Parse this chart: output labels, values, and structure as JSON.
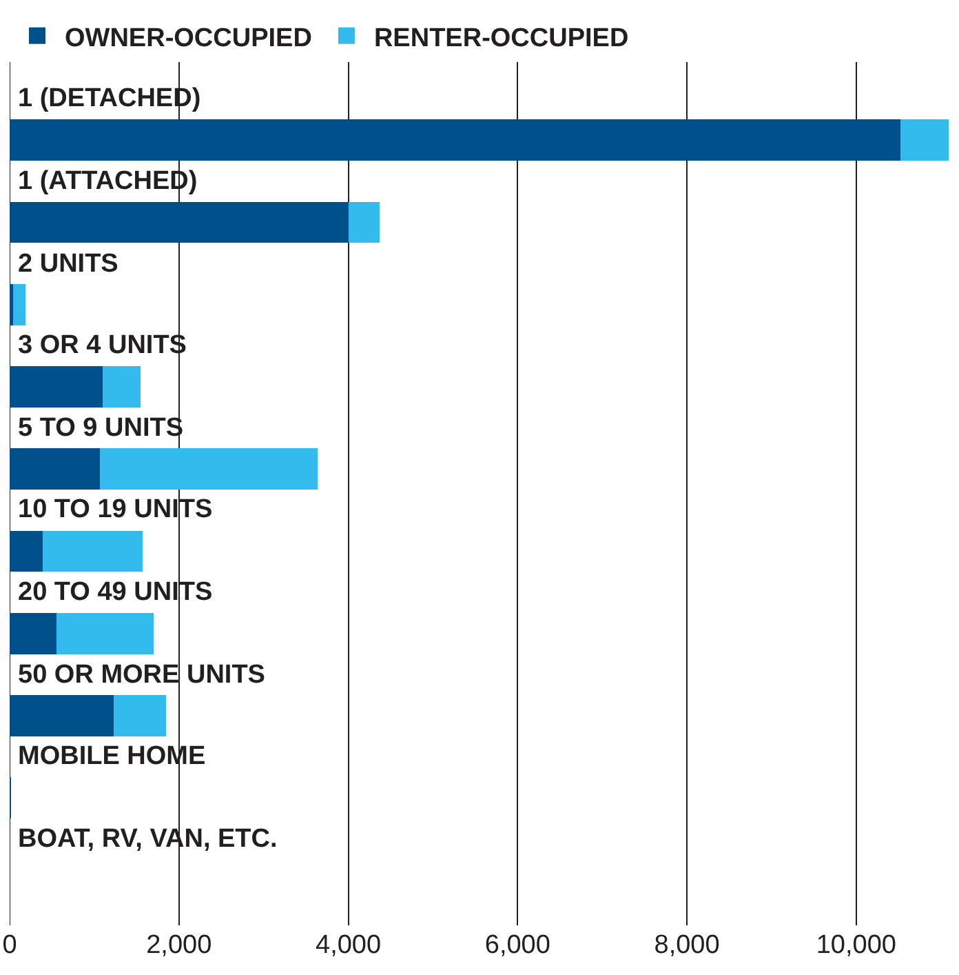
{
  "chart_data": {
    "type": "bar",
    "orientation": "horizontal",
    "stacked": true,
    "categories": [
      "1 (DETACHED)",
      "1 (ATTACHED)",
      "2 UNITS",
      "3 OR 4 UNITS",
      "5 TO 9 UNITS",
      "10 TO 19 UNITS",
      "20 TO 49 UNITS",
      "50 OR MORE UNITS",
      "MOBILE HOME",
      "BOAT, RV, VAN, ETC."
    ],
    "series": [
      {
        "name": "OWNER-OCCUPIED",
        "color": "#00508c",
        "values": [
          10520,
          4000,
          40,
          1100,
          1070,
          390,
          550,
          1230,
          20,
          0
        ]
      },
      {
        "name": "RENTER-OCCUPIED",
        "color": "#33bbee",
        "values": [
          570,
          370,
          150,
          450,
          2570,
          1180,
          1150,
          620,
          0,
          0
        ]
      }
    ],
    "xlim": [
      0,
      11100
    ],
    "xticks": [
      {
        "value": 0,
        "label": "0"
      },
      {
        "value": 2000,
        "label": "2,000"
      },
      {
        "value": 4000,
        "label": "4,000"
      },
      {
        "value": 6000,
        "label": "6,000"
      },
      {
        "value": 8000,
        "label": "8,000"
      },
      {
        "value": 10000,
        "label": "10,000"
      }
    ],
    "grid": "x",
    "legend": "top left"
  }
}
